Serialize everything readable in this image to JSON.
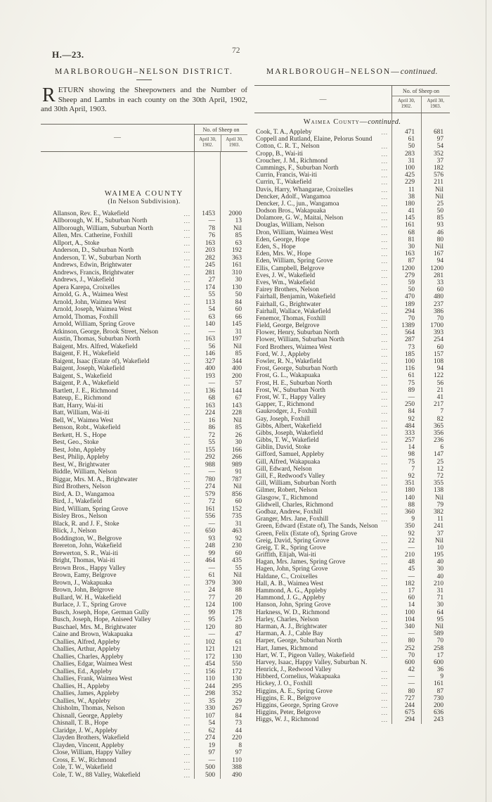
{
  "page": {
    "doc_ref": "H.—23.",
    "page_number": "72"
  },
  "left_column": {
    "title": "MARLBOROUGH–NELSON  DISTRICT.",
    "return_dropcap": "R",
    "return_text": "ETURN showing the Sheepowners and the Number of Sheep and Lambs in each county on the 30th April, 1902, and 30th April, 1903.",
    "table": {
      "name_header_dash": "—",
      "header_group": "No. of Sheep on",
      "col1_label": "April 30, 1902.",
      "col2_label": "April 30, 1903.",
      "section_title": "WAIMEA  COUNTY",
      "section_subtitle": "(In Nelson Subdivision).",
      "rows": [
        [
          "Allanson, Rev. E., Wakefield",
          "1453",
          "2000"
        ],
        [
          "Allborough, W. H., Suburban North",
          "—",
          "13"
        ],
        [
          "Allborough, William, Suburban North",
          "78",
          "Nil"
        ],
        [
          "Allen, Mrs. Catherine, Foxhill",
          "76",
          "85"
        ],
        [
          "Allport, A., Stoke",
          "163",
          "63"
        ],
        [
          "Anderson, D., Suburban North",
          "203",
          "192"
        ],
        [
          "Anderson, T. W., Suburban North",
          "282",
          "363"
        ],
        [
          "Andrews, Edwin, Brightwater",
          "245",
          "161"
        ],
        [
          "Andrews, Francis, Brightwater",
          "281",
          "310"
        ],
        [
          "Andrews, J., Wakefield",
          "27",
          "30"
        ],
        [
          "Apera Karepa, Croixelles",
          "174",
          "130"
        ],
        [
          "Arnold, G. A., Waimea West",
          "55",
          "50"
        ],
        [
          "Arnold, John, Waimea West",
          "113",
          "84"
        ],
        [
          "Arnold, Joseph, Waimea West",
          "54",
          "60"
        ],
        [
          "Arnold, Thomas, Foxhill",
          "63",
          "66"
        ],
        [
          "Arnold, William, Spring Grove",
          "140",
          "145"
        ],
        [
          "Atkinson, George, Brook Street, Nelson",
          "—",
          "31"
        ],
        [
          "Austin, Thomas, Suburban North",
          "163",
          "197"
        ],
        [
          "Baigent, Mrs. Alfred, Wakefield",
          "56",
          "Nil"
        ],
        [
          "Baigent, F. H., Wakefield",
          "146",
          "85"
        ],
        [
          "Baigent, Isaac (Estate of), Wakefield",
          "327",
          "344"
        ],
        [
          "Baigent, Joseph, Wakefield",
          "400",
          "400"
        ],
        [
          "Baigent, S., Wakefield",
          "193",
          "200"
        ],
        [
          "Baigent, P. A., Wakefield",
          "—",
          "57"
        ],
        [
          "Bartlett, J. E., Richmond",
          "136",
          "144"
        ],
        [
          "Bateup, E., Richmond",
          "68",
          "67"
        ],
        [
          "Batt, Harry, Wai-iti",
          "163",
          "143"
        ],
        [
          "Batt, William, Wai-iti",
          "224",
          "228"
        ],
        [
          "Bell, W., Waimea West",
          "16",
          "Nil"
        ],
        [
          "Benson, Robt., Wakefield",
          "86",
          "85"
        ],
        [
          "Berkett, H. S., Hope",
          "72",
          "26"
        ],
        [
          "Best, Geo., Stoke",
          "55",
          "30"
        ],
        [
          "Best, John, Appleby",
          "155",
          "166"
        ],
        [
          "Best, Philip, Appleby",
          "292",
          "266"
        ],
        [
          "Best, W., Brightwater",
          "988",
          "989"
        ],
        [
          "Biddle, William, Nelson",
          "—",
          "91"
        ],
        [
          "Biggar, Mrs. M. A., Brightwater",
          "780",
          "787"
        ],
        [
          "Bird Brothers, Nelson",
          "274",
          "Nil"
        ],
        [
          "Bird, A. D., Wangamoa",
          "579",
          "856"
        ],
        [
          "Bird, J., Wakefield",
          "72",
          "60"
        ],
        [
          "Bird, William, Spring Grove",
          "161",
          "152"
        ],
        [
          "Bisley Bros., Nelson",
          "556",
          "735"
        ],
        [
          "Black, R. and J. F., Stoke",
          "—",
          "31"
        ],
        [
          "Blick, J., Nelson",
          "650",
          "463"
        ],
        [
          "Boddington, W., Belgrove",
          "93",
          "92"
        ],
        [
          "Brereton, John, Wakefield",
          "248",
          "230"
        ],
        [
          "Brewerton, S. R., Wai-iti",
          "99",
          "60"
        ],
        [
          "Bright, Thomas, Wai-iti",
          "464",
          "435"
        ],
        [
          "Brown Bros., Happy Valley",
          "—",
          "55"
        ],
        [
          "Brown, Eamy, Belgrove",
          "61",
          "Nil"
        ],
        [
          "Brown, J., Wakapuaka",
          "379",
          "300"
        ],
        [
          "Brown, John, Belgrove",
          "24",
          "88"
        ],
        [
          "Bullard, W. H., Wakefield",
          "77",
          "20"
        ],
        [
          "Burlace, J. T., Spring Grove",
          "124",
          "100"
        ],
        [
          "Busch, Joseph, Hope, German Gully",
          "99",
          "178"
        ],
        [
          "Busch, Joseph, Hope, Aniseed Valley",
          "95",
          "25"
        ],
        [
          "Buschael, Mrs. M., Brightwater",
          "120",
          "80"
        ],
        [
          "Caine and Brown, Wakapuaka",
          "—",
          "47"
        ],
        [
          "Challies, Alfred, Appleby",
          "102",
          "61"
        ],
        [
          "Challies, Arthur, Appleby",
          "121",
          "121"
        ],
        [
          "Challies, Charles, Appleby",
          "172",
          "130"
        ],
        [
          "Challies, Edgar, Waimea West",
          "454",
          "550"
        ],
        [
          "Challies, Ed., Appleby",
          "156",
          "172"
        ],
        [
          "Challies, Frank, Waimea West",
          "110",
          "130"
        ],
        [
          "Challies, H., Appleby",
          "244",
          "295"
        ],
        [
          "Challies, James, Appleby",
          "298",
          "352"
        ],
        [
          "Challies, W., Appleby",
          "35",
          "29"
        ],
        [
          "Chisholm, Thomas, Nelson",
          "330",
          "267"
        ],
        [
          "Chisnall, George, Appleby",
          "107",
          "84"
        ],
        [
          "Chisnall, T. B., Hope",
          "54",
          "73"
        ],
        [
          "Claridge, J. W., Appleby",
          "62",
          "44"
        ],
        [
          "Clayden Brothers, Wakefield",
          "274",
          "220"
        ],
        [
          "Clayden, Vincent, Appleby",
          "19",
          "8"
        ],
        [
          "Close, William, Happy Valley",
          "97",
          "97"
        ],
        [
          "Cross, E. W., Richmond",
          "—",
          "110"
        ],
        [
          "Cole, T. W., Wakefield",
          "500",
          "388"
        ],
        [
          "Cole, T. W., 88 Valley, Wakefield",
          "500",
          "490"
        ]
      ]
    }
  },
  "right_column": {
    "title_prefix": "MARLBOROUGH–NELSON—",
    "title_continued": "continued.",
    "table": {
      "name_header_dash": "—",
      "header_group": "No. of Sheep on",
      "col1_label": "April 30, 1902.",
      "col2_label": "April 30, 1903.",
      "section_prefix": "Waimea County—",
      "section_continued": "continued.",
      "rows": [
        [
          "Cook, T. A., Appleby",
          "471",
          "681"
        ],
        [
          "Coppell and Rutland, Elaine, Pelorus Sound",
          "61",
          "97"
        ],
        [
          "Cotton, C. R. T., Nelson",
          "50",
          "54"
        ],
        [
          "Cropp, B., Wai-iti",
          "283",
          "352"
        ],
        [
          "Croucher, J. M., Richmond",
          "31",
          "37"
        ],
        [
          "Cummings, F., Suburban North",
          "100",
          "182"
        ],
        [
          "Currin, Francis, Wai-iti",
          "425",
          "576"
        ],
        [
          "Currin, T., Wakefield",
          "229",
          "211"
        ],
        [
          "Davis, Harry, Whangarae, Croixelles",
          "11",
          "Nil"
        ],
        [
          "Dencker, Adolf., Wangamoa",
          "38",
          "Nil"
        ],
        [
          "Dencker, J. C., jun., Wangamoa",
          "180",
          "25"
        ],
        [
          "Dodson Bros., Wakapuaka",
          "41",
          "50"
        ],
        [
          "Dolamore, G. W., Maitai, Nelson",
          "145",
          "85"
        ],
        [
          "Douglas, William, Nelson",
          "161",
          "93"
        ],
        [
          "Dron, William, Waimea West",
          "68",
          "46"
        ],
        [
          "Eden, George, Hope",
          "81",
          "80"
        ],
        [
          "Eden, S., Hope",
          "30",
          "Nil"
        ],
        [
          "Eden, Mrs. W., Hope",
          "163",
          "167"
        ],
        [
          "Eden, William, Spring Grove",
          "87",
          "94"
        ],
        [
          "Ellis, Campbell, Belgrove",
          "1200",
          "1200"
        ],
        [
          "Eves, J. W., Wakefield",
          "279",
          "281"
        ],
        [
          "Eves, Wm., Wakefield",
          "59",
          "33"
        ],
        [
          "Fairey Brothers, Nelson",
          "50",
          "60"
        ],
        [
          "Fairhall, Benjamin, Wakefield",
          "470",
          "480"
        ],
        [
          "Fairhall, G., Brightwater",
          "189",
          "237"
        ],
        [
          "Fairhall, Wallace, Wakefield",
          "294",
          "386"
        ],
        [
          "Fenemor, Thomas, Foxhill",
          "70",
          "70"
        ],
        [
          "Field, George, Belgrove",
          "1389",
          "1700"
        ],
        [
          "Flower, Henry, Suburban North",
          "564",
          "393"
        ],
        [
          "Flower, William, Suburban North",
          "287",
          "254"
        ],
        [
          "Ford Brothers, Waimea West",
          "73",
          "60"
        ],
        [
          "Ford, W. J., Appleby",
          "185",
          "157"
        ],
        [
          "Fowler, R. N., Wakefield",
          "100",
          "108"
        ],
        [
          "Frost, George, Suburban North",
          "116",
          "94"
        ],
        [
          "Frost, G. L., Wakapuaka",
          "61",
          "122"
        ],
        [
          "Frost, H. E., Suburban North",
          "75",
          "56"
        ],
        [
          "Frost, W., Suburban North",
          "89",
          "21"
        ],
        [
          "Frost, W. T., Happy Valley",
          "—",
          "41"
        ],
        [
          "Gapper, T., Richmond",
          "250",
          "217"
        ],
        [
          "Gaukrodger, J., Foxhill",
          "84",
          "7"
        ],
        [
          "Gay, Joseph, Foxhill",
          "92",
          "82"
        ],
        [
          "Gibbs, Albert, Wakefield",
          "484",
          "365"
        ],
        [
          "Gibbs, Joseph, Wakefield",
          "333",
          "356"
        ],
        [
          "Gibbs, T. W., Wakefield",
          "257",
          "236"
        ],
        [
          "Giblin, David, Stoke",
          "14",
          "6"
        ],
        [
          "Gifford, Samuel, Appleby",
          "98",
          "147"
        ],
        [
          "Gill, Alfred, Wakapuaka",
          "75",
          "25"
        ],
        [
          "Gill, Edward, Nelson",
          "7",
          "12"
        ],
        [
          "Gill, F., Redwood's Valley",
          "92",
          "72"
        ],
        [
          "Gill, William, Suburban North",
          "351",
          "355"
        ],
        [
          "Gilmer, Robert, Nelson",
          "180",
          "138"
        ],
        [
          "Glasgow, T., Richmond",
          "140",
          "Nil"
        ],
        [
          "Glidwell, Charles, Richmond",
          "88",
          "79"
        ],
        [
          "Godbaz, Andrew, Foxhill",
          "360",
          "382"
        ],
        [
          "Granger, Mrs. Jane, Foxhill",
          "9",
          "11"
        ],
        [
          "Green, Edward (Estate of), The Sands, Nelson",
          "350",
          "241"
        ],
        [
          "Green, Felix (Estate of), Spring Grove",
          "92",
          "37"
        ],
        [
          "Greig, David, Spring Grove",
          "22",
          "Nil"
        ],
        [
          "Greig, T. R., Spring Grove",
          "—",
          "10"
        ],
        [
          "Griffith, Elijah, Wai-iti",
          "210",
          "195"
        ],
        [
          "Hagan, Mrs. James, Spring Grove",
          "48",
          "40"
        ],
        [
          "Hagen, John, Spring Grove",
          "45",
          "30"
        ],
        [
          "Haldane, C., Croixelles",
          "—",
          "40"
        ],
        [
          "Hall, A. B., Waimea West",
          "182",
          "210"
        ],
        [
          "Hammond, A. G., Appleby",
          "17",
          "31"
        ],
        [
          "Hammond, J. G., Appleby",
          "60",
          "71"
        ],
        [
          "Hanson, John, Spring Grove",
          "14",
          "30"
        ],
        [
          "Harkness, W. D., Richmond",
          "100",
          "64"
        ],
        [
          "Harley, Charles, Nelson",
          "104",
          "95"
        ],
        [
          "Harman, A. J., Brightwater",
          "340",
          "Nil"
        ],
        [
          "Harman, A. J., Cable Bay",
          "—",
          "589"
        ],
        [
          "Harper, George, Suburban North",
          "80",
          "70"
        ],
        [
          "Hart, James, Richmond",
          "252",
          "258"
        ],
        [
          "Hart, W. T., Pigeon Valley, Wakefield",
          "70",
          "17"
        ],
        [
          "Harvey, Isaac, Happy Valley, Suburban N.",
          "600",
          "600"
        ],
        [
          "Henrick, J., Redwood Valley",
          "42",
          "36"
        ],
        [
          "Hibberd, Cornelius, Wakapuaka",
          "—",
          "9"
        ],
        [
          "Hickey, J. O., Foxhill",
          "—",
          "161"
        ],
        [
          "Higgins, A. E., Spring Grove",
          "80",
          "87"
        ],
        [
          "Higgins, E. R., Belgrove",
          "727",
          "730"
        ],
        [
          "Higgins, George, Spring Grove",
          "244",
          "200"
        ],
        [
          "Higgins, Peter, Belgrove",
          "675",
          "636"
        ],
        [
          "Higgs, W. J., Richmond",
          "294",
          "243"
        ]
      ]
    }
  }
}
